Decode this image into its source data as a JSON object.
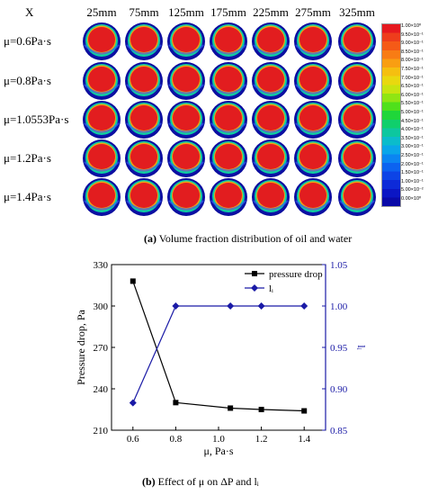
{
  "figure_a": {
    "corner_label": "X",
    "columns": [
      "25mm",
      "75mm",
      "125mm",
      "175mm",
      "225mm",
      "275mm",
      "325mm"
    ],
    "rows": [
      "μ=0.6Pa·s",
      "μ=0.8Pa·s",
      "μ=1.0553Pa·s",
      "μ=1.2Pa·s",
      "μ=1.4Pa·s"
    ],
    "colorbar_labels": [
      "1.00×10⁰",
      "9.50×10⁻¹",
      "9.00×10⁻¹",
      "8.50×10⁻¹",
      "8.00×10⁻¹",
      "7.50×10⁻¹",
      "7.00×10⁻¹",
      "6.50×10⁻¹",
      "6.00×10⁻¹",
      "5.50×10⁻¹",
      "5.00×10⁻¹",
      "4.50×10⁻¹",
      "4.00×10⁻¹",
      "3.50×10⁻¹",
      "3.00×10⁻¹",
      "2.50×10⁻¹",
      "2.00×10⁻¹",
      "1.50×10⁻¹",
      "1.00×10⁻¹",
      "5.00×10⁻²",
      "0.00×10⁰"
    ],
    "colorbar_colors": [
      "#e6191f",
      "#ee3d1c",
      "#f55a17",
      "#f87c14",
      "#f99e12",
      "#f5bf10",
      "#e9d80f",
      "#c8e410",
      "#8fe513",
      "#4fe01b",
      "#1fd63a",
      "#10cf6c",
      "#0dc79f",
      "#0bbccb",
      "#0aa6e9",
      "#0b85f2",
      "#0c63f0",
      "#0d44e6",
      "#0d2ad8",
      "#0b16c4",
      "#0a0aa8"
    ],
    "caption_letter": "(a)",
    "caption_text": " Volume fraction distribution of oil and water"
  },
  "chart_data": {
    "type": "line",
    "x": [
      0.6,
      0.8,
      1.0553,
      1.2,
      1.4
    ],
    "xlabel": "μ, Pa·s",
    "xticks": [
      "0.6",
      "0.8",
      "1.0",
      "1.2",
      "1.4"
    ],
    "xlim": [
      0.5,
      1.5
    ],
    "y1label": "Pressure drop, Pa",
    "y1lim": [
      210,
      330
    ],
    "y1ticks": [
      "210",
      "240",
      "270",
      "300",
      "330"
    ],
    "y2label": "lᵢ",
    "y2lim": [
      0.85,
      1.05
    ],
    "y2ticks": [
      "0.85",
      "0.90",
      "0.95",
      "1.00",
      "1.05"
    ],
    "series": [
      {
        "name": "pressure drop",
        "axis": "left",
        "color": "#000000",
        "marker": "square",
        "values": [
          318,
          230,
          226,
          225,
          224
        ]
      },
      {
        "name": "lᵢ",
        "axis": "right",
        "color": "#1a1aa6",
        "marker": "diamond",
        "values": [
          0.883,
          1.0,
          1.0,
          1.0,
          1.0
        ]
      }
    ],
    "legend_position": "top-right",
    "caption_letter": "(b)",
    "caption_text": " Effect of μ on ΔP and lᵢ"
  }
}
